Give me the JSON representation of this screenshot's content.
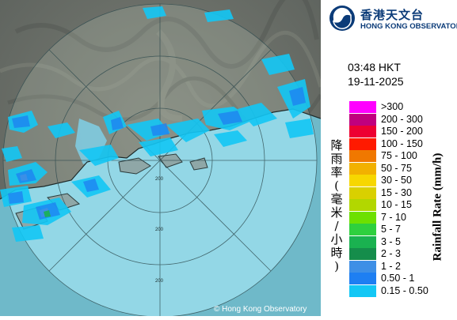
{
  "header": {
    "logo_cn": "香港天文台",
    "logo_en": "HONG KONG OBSERVATORY",
    "logo_icon": "hko-emblem-icon"
  },
  "timestamp": {
    "time": "03:48 HKT",
    "date": "19-11-2025"
  },
  "legend": {
    "title_cn": "降雨率(毫米/小時)",
    "title_en": "Rainfall Rate (mm/h)",
    "items": [
      {
        "label": ">300",
        "color": "#ff00ff"
      },
      {
        "label": "200 - 300",
        "color": "#c0007e"
      },
      {
        "label": "150 - 200",
        "color": "#ed0032"
      },
      {
        "label": "100 - 150",
        "color": "#ff1a00"
      },
      {
        "label": "75 - 100",
        "color": "#f07800"
      },
      {
        "label": "50 - 75",
        "color": "#f2b100"
      },
      {
        "label": "30 - 50",
        "color": "#f7d700"
      },
      {
        "label": "15 - 30",
        "color": "#d9d000"
      },
      {
        "label": "10 - 15",
        "color": "#b2d700"
      },
      {
        "label": "7 - 10",
        "color": "#6de000"
      },
      {
        "label": "5 - 7",
        "color": "#2ed03e"
      },
      {
        "label": "3 - 5",
        "color": "#1ab250"
      },
      {
        "label": "2 - 3",
        "color": "#158d4b"
      },
      {
        "label": "1 - 2",
        "color": "#3e8fe6"
      },
      {
        "label": "0.50 - 1",
        "color": "#1e7ff2"
      },
      {
        "label": "0.15 - 0.50",
        "color": "#13c7f5"
      }
    ]
  },
  "map": {
    "range_labels": [
      "200",
      "200",
      "200"
    ],
    "copyright": "© Hong Kong Observatory"
  }
}
